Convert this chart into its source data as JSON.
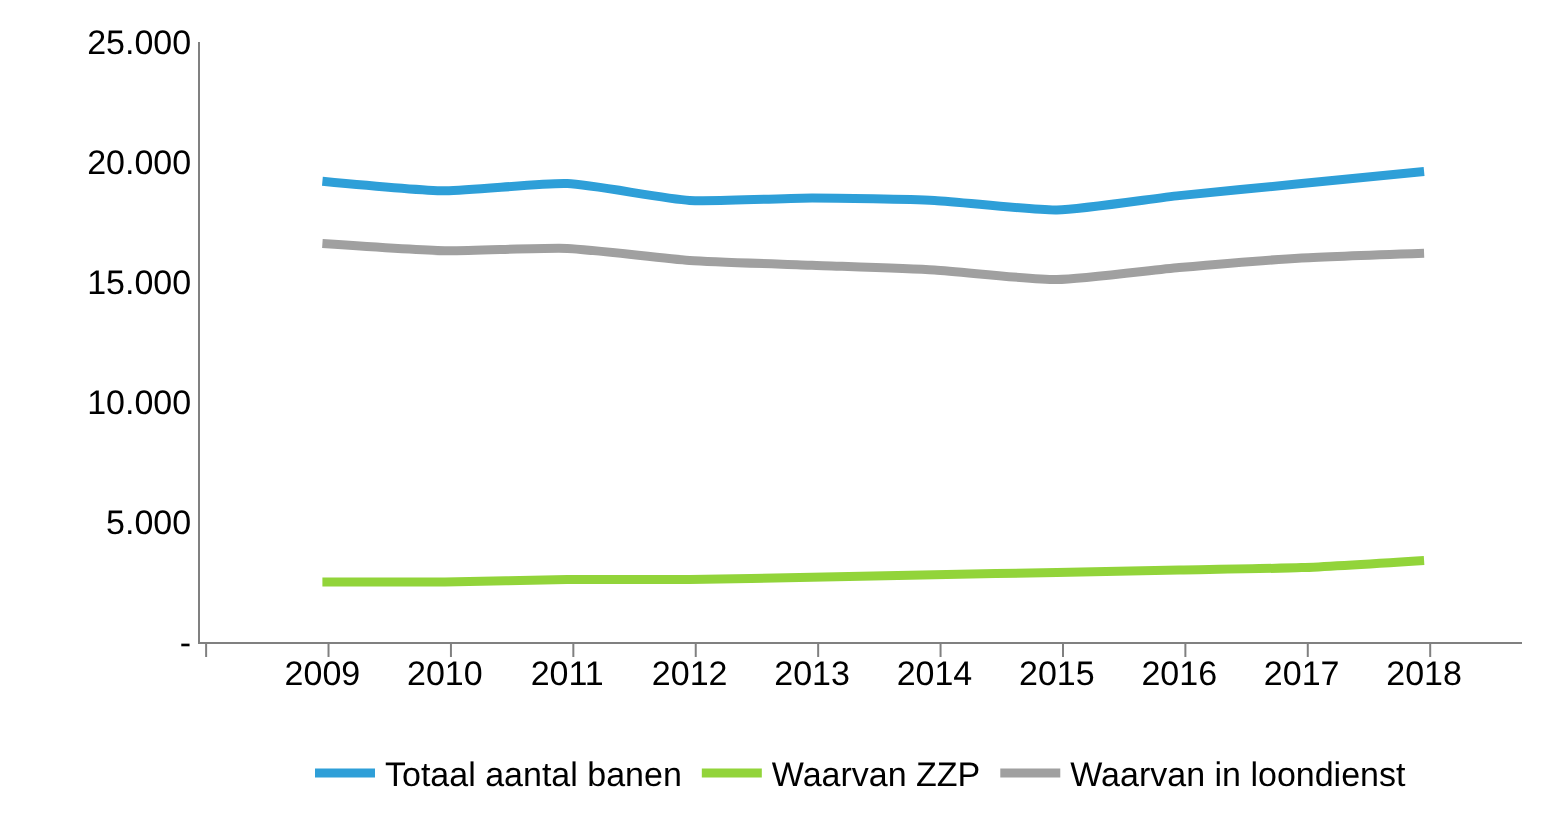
{
  "chart_data": {
    "type": "line",
    "categories": [
      "2009",
      "2010",
      "2011",
      "2012",
      "2013",
      "2014",
      "2015",
      "2016",
      "2017",
      "2018"
    ],
    "series": [
      {
        "name": "Totaal aantal banen",
        "color": "#2e9fd8",
        "values": [
          19200,
          18800,
          19100,
          18400,
          18500,
          18400,
          18000,
          18600,
          19100,
          19600
        ]
      },
      {
        "name": "Waarvan ZZP",
        "color": "#92d43a",
        "values": [
          2500,
          2500,
          2600,
          2600,
          2700,
          2800,
          2900,
          3000,
          3100,
          3400
        ]
      },
      {
        "name": "Waarvan in loondienst",
        "color": "#a0a0a0",
        "values": [
          16600,
          16300,
          16400,
          15900,
          15700,
          15500,
          15100,
          15600,
          16000,
          16200
        ]
      }
    ],
    "ylim": [
      0,
      25000
    ],
    "yticks": [
      {
        "value": 0,
        "label": "-"
      },
      {
        "value": 5000,
        "label": "5.000"
      },
      {
        "value": 10000,
        "label": "10.000"
      },
      {
        "value": 15000,
        "label": "15.000"
      },
      {
        "value": 20000,
        "label": "20.000"
      },
      {
        "value": 25000,
        "label": "25.000"
      }
    ],
    "legend": "bottom",
    "marker": "none",
    "line_style": "solid"
  }
}
